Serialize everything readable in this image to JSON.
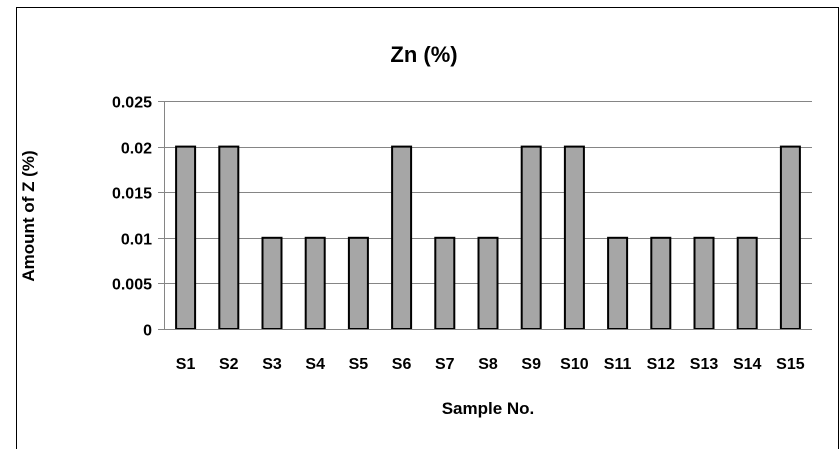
{
  "chart_data": {
    "type": "bar",
    "title": "Zn (%)",
    "xlabel": "Sample No.",
    "ylabel": "Amount of Z (%)",
    "categories": [
      "S1",
      "S2",
      "S3",
      "S4",
      "S5",
      "S6",
      "S7",
      "S8",
      "S9",
      "S10",
      "S11",
      "S12",
      "S13",
      "S14",
      "S15"
    ],
    "values": [
      0.02,
      0.02,
      0.01,
      0.01,
      0.01,
      0.02,
      0.01,
      0.01,
      0.02,
      0.02,
      0.01,
      0.01,
      0.01,
      0.01,
      0.02
    ],
    "ylim": [
      0,
      0.025
    ],
    "yticks": [
      "0",
      "0.005",
      "0.01",
      "0.015",
      "0.02",
      "0.025"
    ],
    "grid": true,
    "legend": "none",
    "colors": {
      "bar_fill": "#a6a6a6",
      "bar_stroke": "#000000",
      "gridline": "#858585",
      "axis": "#858585",
      "frame": "#000000"
    }
  }
}
